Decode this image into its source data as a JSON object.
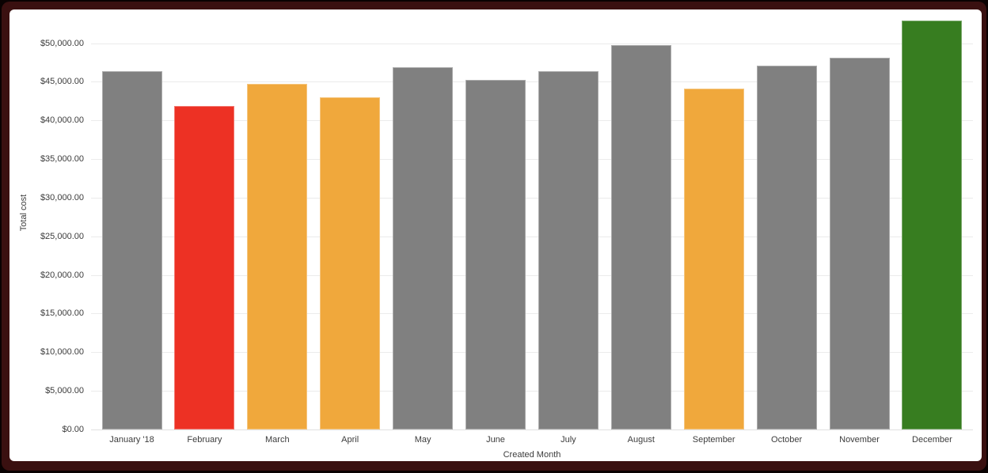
{
  "chart_data": {
    "type": "bar",
    "title": "",
    "xlabel": "Created Month",
    "ylabel": "Total cost",
    "categories": [
      "January '18",
      "February",
      "March",
      "April",
      "May",
      "June",
      "July",
      "August",
      "September",
      "October",
      "November",
      "December"
    ],
    "values": [
      46400,
      41900,
      44700,
      43000,
      46900,
      45300,
      46400,
      49800,
      44100,
      47100,
      48100,
      52900
    ],
    "bar_colors": [
      "#808080",
      "#ed3124",
      "#f0a83c",
      "#f0a83c",
      "#808080",
      "#808080",
      "#808080",
      "#808080",
      "#f0a83c",
      "#808080",
      "#808080",
      "#377d20"
    ],
    "ytick_values": [
      0,
      5000,
      10000,
      15000,
      20000,
      25000,
      30000,
      35000,
      40000,
      45000,
      50000
    ],
    "ytick_labels": [
      "$0.00",
      "$5,000.00",
      "$10,000.00",
      "$15,000.00",
      "$20,000.00",
      "$25,000.00",
      "$30,000.00",
      "$35,000.00",
      "$40,000.00",
      "$45,000.00",
      "$50,000.00"
    ],
    "ylim": [
      0,
      54100
    ],
    "grid": true,
    "legend": "none"
  },
  "frame": {
    "outer_background": "#0a0202",
    "border_color": "#3a1010",
    "card_background": "#ffffff"
  },
  "colors": {
    "axis_text": "#3c3c3c",
    "gridline": "#ebebeb",
    "zero_line": "#e0e0e0",
    "default_bar": "#808080",
    "negative_bar": "#ed3124",
    "warning_bar": "#f0a83c",
    "positive_bar": "#377d20"
  }
}
